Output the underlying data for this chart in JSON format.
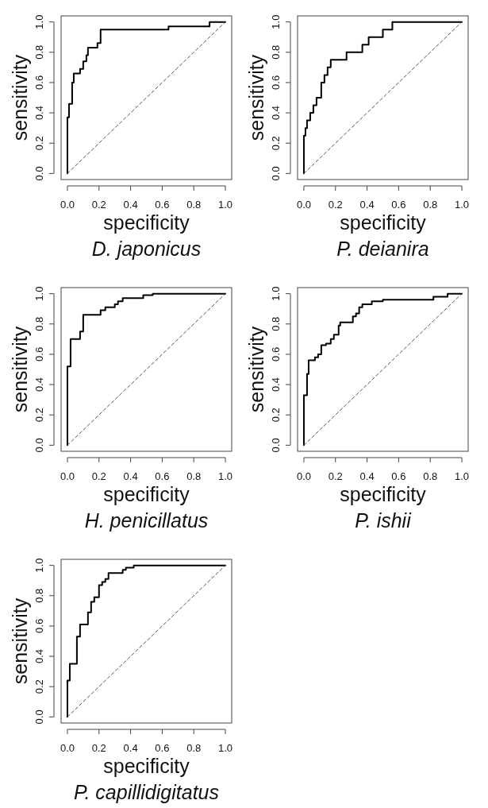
{
  "chart_data": [
    {
      "type": "line",
      "title": "D. japonicus",
      "xlabel": "specificity",
      "ylabel": "sensitivity",
      "xlim": [
        -0.04,
        1.04
      ],
      "ylim": [
        -0.04,
        1.04
      ],
      "xticks": [
        {
          "value": 0,
          "label": "0.0"
        },
        {
          "value": 0.2,
          "label": "0.2"
        },
        {
          "value": 0.4,
          "label": "0.4"
        },
        {
          "value": 0.6,
          "label": "0.6"
        },
        {
          "value": 0.8,
          "label": "0.8"
        },
        {
          "value": 1,
          "label": "1.0"
        }
      ],
      "yticks": [
        {
          "value": 0,
          "label": "0.0"
        },
        {
          "value": 0.2,
          "label": "0.2"
        },
        {
          "value": 0.4,
          "label": "0.4"
        },
        {
          "value": 0.6,
          "label": "0.6"
        },
        {
          "value": 0.8,
          "label": "0.8"
        },
        {
          "value": 1,
          "label": "1.0"
        }
      ],
      "series": [
        {
          "color": "#000000",
          "line_style": "solid",
          "x": [
            0,
            0,
            0.01,
            0.01,
            0.03,
            0.03,
            0.04,
            0.04,
            0.08,
            0.08,
            0.1,
            0.1,
            0.12,
            0.12,
            0.13,
            0.13,
            0.19,
            0.19,
            0.21,
            0.21,
            0.64,
            0.64,
            0.9,
            0.9,
            1
          ],
          "values": [
            0,
            0.37,
            0.37,
            0.46,
            0.46,
            0.6,
            0.6,
            0.66,
            0.66,
            0.69,
            0.69,
            0.74,
            0.74,
            0.78,
            0.78,
            0.83,
            0.83,
            0.86,
            0.86,
            0.95,
            0.95,
            0.97,
            0.97,
            1,
            1
          ]
        },
        {
          "color": "#555555",
          "line_style": "dashed",
          "x": [
            0,
            1
          ],
          "values": [
            0,
            1
          ]
        }
      ]
    },
    {
      "type": "line",
      "title": "P. deianira",
      "xlabel": "specificity",
      "ylabel": "sensitivity",
      "xlim": [
        -0.04,
        1.04
      ],
      "ylim": [
        -0.04,
        1.04
      ],
      "xticks": [
        {
          "value": 0,
          "label": "0.0"
        },
        {
          "value": 0.2,
          "label": "0.2"
        },
        {
          "value": 0.4,
          "label": "0.4"
        },
        {
          "value": 0.6,
          "label": "0.6"
        },
        {
          "value": 0.8,
          "label": "0.8"
        },
        {
          "value": 1,
          "label": "1.0"
        }
      ],
      "yticks": [
        {
          "value": 0,
          "label": "0.0"
        },
        {
          "value": 0.2,
          "label": "0.2"
        },
        {
          "value": 0.4,
          "label": "0.4"
        },
        {
          "value": 0.6,
          "label": "0.6"
        },
        {
          "value": 0.8,
          "label": "0.8"
        },
        {
          "value": 1,
          "label": "1.0"
        }
      ],
      "series": [
        {
          "color": "#000000",
          "line_style": "solid",
          "x": [
            0,
            0,
            0.01,
            0.01,
            0.02,
            0.02,
            0.04,
            0.04,
            0.06,
            0.06,
            0.08,
            0.08,
            0.11,
            0.11,
            0.13,
            0.13,
            0.15,
            0.15,
            0.17,
            0.17,
            0.27,
            0.27,
            0.37,
            0.37,
            0.41,
            0.41,
            0.5,
            0.5,
            0.56,
            0.56,
            1
          ],
          "values": [
            0,
            0.25,
            0.25,
            0.3,
            0.3,
            0.35,
            0.35,
            0.4,
            0.4,
            0.45,
            0.45,
            0.5,
            0.5,
            0.6,
            0.6,
            0.65,
            0.65,
            0.7,
            0.7,
            0.75,
            0.75,
            0.8,
            0.8,
            0.85,
            0.85,
            0.9,
            0.9,
            0.95,
            0.95,
            1,
            1
          ]
        },
        {
          "color": "#555555",
          "line_style": "dashed",
          "x": [
            0,
            1
          ],
          "values": [
            0,
            1
          ]
        }
      ]
    },
    {
      "type": "line",
      "title": "H. penicillatus",
      "xlabel": "specificity",
      "ylabel": "sensitivity",
      "xlim": [
        -0.04,
        1.04
      ],
      "ylim": [
        -0.04,
        1.04
      ],
      "xticks": [
        {
          "value": 0,
          "label": "0.0"
        },
        {
          "value": 0.2,
          "label": "0.2"
        },
        {
          "value": 0.4,
          "label": "0.4"
        },
        {
          "value": 0.6,
          "label": "0.6"
        },
        {
          "value": 0.8,
          "label": "0.8"
        },
        {
          "value": 1,
          "label": "1.0"
        }
      ],
      "yticks": [
        {
          "value": 0,
          "label": "0.0"
        },
        {
          "value": 0.2,
          "label": "0.2"
        },
        {
          "value": 0.4,
          "label": "0.4"
        },
        {
          "value": 0.6,
          "label": "0.6"
        },
        {
          "value": 0.8,
          "label": "0.8"
        },
        {
          "value": 1,
          "label": "1.0"
        }
      ],
      "series": [
        {
          "color": "#000000",
          "line_style": "solid",
          "x": [
            0,
            0,
            0.02,
            0.02,
            0.08,
            0.08,
            0.1,
            0.1,
            0.21,
            0.21,
            0.24,
            0.24,
            0.3,
            0.3,
            0.32,
            0.32,
            0.35,
            0.35,
            0.48,
            0.48,
            0.54,
            0.54,
            1
          ],
          "values": [
            0,
            0.52,
            0.52,
            0.7,
            0.7,
            0.75,
            0.75,
            0.86,
            0.86,
            0.89,
            0.89,
            0.91,
            0.91,
            0.93,
            0.93,
            0.95,
            0.95,
            0.97,
            0.97,
            0.99,
            0.99,
            1,
            1
          ]
        },
        {
          "color": "#555555",
          "line_style": "dashed",
          "x": [
            0,
            1
          ],
          "values": [
            0,
            1
          ]
        }
      ]
    },
    {
      "type": "line",
      "title": "P. ishii",
      "xlabel": "specificity",
      "ylabel": "sensitivity",
      "xlim": [
        -0.04,
        1.04
      ],
      "ylim": [
        -0.04,
        1.04
      ],
      "xticks": [
        {
          "value": 0,
          "label": "0.0"
        },
        {
          "value": 0.2,
          "label": "0.2"
        },
        {
          "value": 0.4,
          "label": "0.4"
        },
        {
          "value": 0.6,
          "label": "0.6"
        },
        {
          "value": 0.8,
          "label": "0.8"
        },
        {
          "value": 1,
          "label": "1.0"
        }
      ],
      "yticks": [
        {
          "value": 0,
          "label": "0.0"
        },
        {
          "value": 0.2,
          "label": "0.2"
        },
        {
          "value": 0.4,
          "label": "0.4"
        },
        {
          "value": 0.6,
          "label": "0.6"
        },
        {
          "value": 0.8,
          "label": "0.8"
        },
        {
          "value": 1,
          "label": "1.0"
        }
      ],
      "series": [
        {
          "color": "#000000",
          "line_style": "solid",
          "x": [
            0,
            0,
            0.02,
            0.02,
            0.03,
            0.03,
            0.07,
            0.07,
            0.09,
            0.09,
            0.11,
            0.11,
            0.14,
            0.14,
            0.17,
            0.17,
            0.19,
            0.19,
            0.22,
            0.22,
            0.23,
            0.23,
            0.31,
            0.31,
            0.33,
            0.33,
            0.35,
            0.35,
            0.37,
            0.37,
            0.43,
            0.43,
            0.5,
            0.5,
            0.82,
            0.82,
            0.91,
            0.91,
            1
          ],
          "values": [
            0,
            0.33,
            0.33,
            0.47,
            0.47,
            0.56,
            0.56,
            0.58,
            0.58,
            0.6,
            0.6,
            0.66,
            0.66,
            0.67,
            0.67,
            0.7,
            0.7,
            0.73,
            0.73,
            0.79,
            0.79,
            0.81,
            0.81,
            0.85,
            0.85,
            0.87,
            0.87,
            0.91,
            0.91,
            0.93,
            0.93,
            0.95,
            0.95,
            0.96,
            0.96,
            0.98,
            0.98,
            1,
            1
          ]
        },
        {
          "color": "#555555",
          "line_style": "dashed",
          "x": [
            0,
            1
          ],
          "values": [
            0,
            1
          ]
        }
      ]
    },
    {
      "type": "line",
      "title": "P. capillidigitatus",
      "xlabel": "specificity",
      "ylabel": "sensitivity",
      "xlim": [
        -0.04,
        1.04
      ],
      "ylim": [
        -0.04,
        1.04
      ],
      "xticks": [
        {
          "value": 0,
          "label": "0.0"
        },
        {
          "value": 0.2,
          "label": "0.2"
        },
        {
          "value": 0.4,
          "label": "0.4"
        },
        {
          "value": 0.6,
          "label": "0.6"
        },
        {
          "value": 0.8,
          "label": "0.8"
        },
        {
          "value": 1,
          "label": "1.0"
        }
      ],
      "yticks": [
        {
          "value": 0,
          "label": "0.0"
        },
        {
          "value": 0.2,
          "label": "0.2"
        },
        {
          "value": 0.4,
          "label": "0.4"
        },
        {
          "value": 0.6,
          "label": "0.6"
        },
        {
          "value": 0.8,
          "label": "0.8"
        },
        {
          "value": 1,
          "label": "1.0"
        }
      ],
      "series": [
        {
          "color": "#000000",
          "line_style": "solid",
          "x": [
            0,
            0,
            0.015,
            0.015,
            0.06,
            0.06,
            0.08,
            0.08,
            0.13,
            0.13,
            0.15,
            0.15,
            0.17,
            0.17,
            0.2,
            0.2,
            0.22,
            0.22,
            0.24,
            0.24,
            0.26,
            0.26,
            0.35,
            0.35,
            0.37,
            0.37,
            0.42,
            0.42,
            1
          ],
          "values": [
            0,
            0.24,
            0.24,
            0.35,
            0.35,
            0.53,
            0.53,
            0.61,
            0.61,
            0.69,
            0.69,
            0.76,
            0.76,
            0.79,
            0.79,
            0.87,
            0.87,
            0.89,
            0.89,
            0.91,
            0.91,
            0.95,
            0.95,
            0.97,
            0.97,
            0.985,
            0.985,
            1,
            1
          ]
        },
        {
          "color": "#555555",
          "line_style": "dashed",
          "x": [
            0,
            1
          ],
          "values": [
            0,
            1
          ]
        }
      ]
    }
  ]
}
